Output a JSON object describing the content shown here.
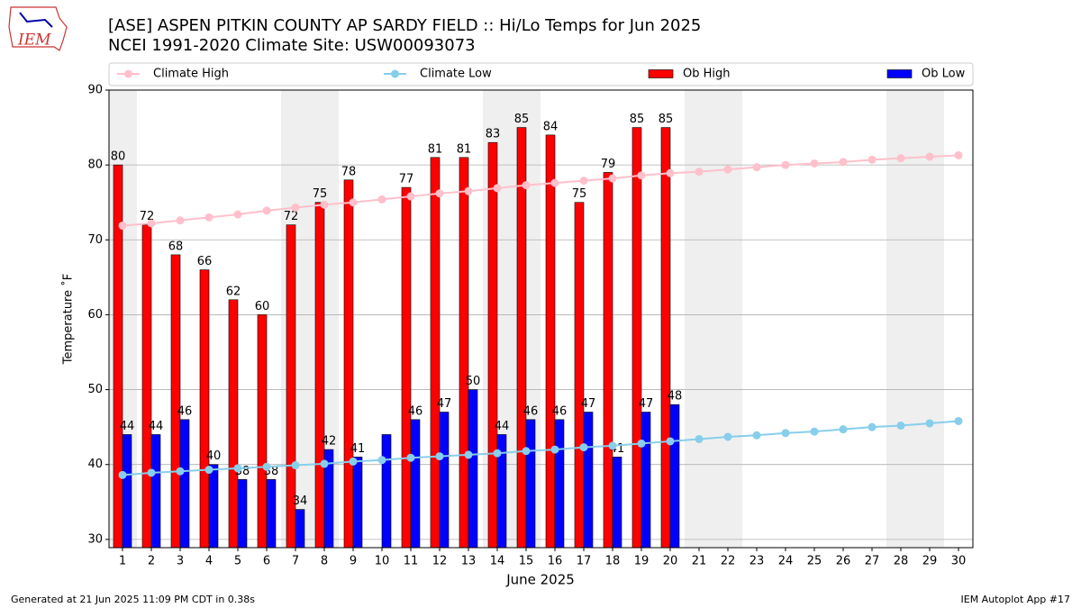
{
  "header": {
    "title": "[ASE] ASPEN PITKIN COUNTY AP SARDY FIELD :: Hi/Lo Temps for Jun 2025",
    "subtitle": "NCEI 1991-2020 Climate Site: USW00093073",
    "logo": "IEM"
  },
  "footer": {
    "left": "Generated at 21 Jun 2025 11:09 PM CDT in 0.38s",
    "right": "IEM Autoplot App #17"
  },
  "chart_data": {
    "type": "bar",
    "xlabel": "June 2025",
    "ylabel": "Temperature ˚F",
    "categories": [
      "1",
      "2",
      "3",
      "4",
      "5",
      "6",
      "7",
      "8",
      "9",
      "10",
      "11",
      "12",
      "13",
      "14",
      "15",
      "16",
      "17",
      "18",
      "19",
      "20",
      "21",
      "22",
      "23",
      "24",
      "25",
      "26",
      "27",
      "28",
      "29",
      "30"
    ],
    "highlight_categories": [
      0,
      6,
      7,
      13,
      14,
      20,
      21,
      27,
      28
    ],
    "highlight_color": "#efefef",
    "series": [
      {
        "name": "Climate High",
        "type": "line",
        "color": "#ffc0cb",
        "values": [
          71.9,
          72.2,
          72.6,
          73.0,
          73.4,
          73.9,
          74.3,
          74.7,
          75.0,
          75.4,
          75.8,
          76.2,
          76.5,
          76.9,
          77.3,
          77.6,
          77.9,
          78.2,
          78.6,
          78.9,
          79.1,
          79.4,
          79.7,
          80.0,
          80.2,
          80.4,
          80.7,
          80.9,
          81.1,
          81.3
        ]
      },
      {
        "name": "Climate Low",
        "type": "line",
        "color": "#87ceeb",
        "values": [
          38.6,
          38.9,
          39.1,
          39.3,
          39.5,
          39.7,
          39.9,
          40.1,
          40.4,
          40.6,
          40.9,
          41.1,
          41.3,
          41.5,
          41.8,
          42.0,
          42.3,
          42.5,
          42.8,
          43.1,
          43.4,
          43.7,
          43.9,
          44.2,
          44.4,
          44.7,
          45.0,
          45.2,
          45.5,
          45.8
        ]
      },
      {
        "name": "Ob High",
        "type": "bar",
        "color": "#ff0000",
        "values": [
          80,
          72,
          68,
          66,
          62,
          60,
          72,
          75,
          78,
          null,
          77,
          81,
          81,
          83,
          85,
          84,
          75,
          79,
          85,
          85,
          null,
          null,
          null,
          null,
          null,
          null,
          null,
          null,
          null,
          null
        ]
      },
      {
        "name": "Ob Low",
        "type": "bar",
        "color": "#0000ff",
        "values": [
          44,
          44,
          46,
          40,
          38,
          38,
          34,
          42,
          41,
          44,
          46,
          47,
          50,
          44,
          46,
          46,
          47,
          41,
          47,
          48,
          null,
          null,
          null,
          null,
          null,
          null,
          null,
          null,
          null,
          null
        ],
        "value_labels": [
          "44",
          "44",
          "46",
          "40",
          "38",
          "38",
          "34",
          "42",
          "41",
          null,
          "46",
          "47",
          "50",
          "44",
          "46",
          "46",
          "47",
          "41",
          "47",
          "48",
          null,
          null,
          null,
          null,
          null,
          null,
          null,
          null,
          null,
          null
        ]
      }
    ],
    "ylim": [
      28.9,
      90
    ],
    "yticks": [
      30,
      40,
      50,
      60,
      70,
      80,
      90
    ],
    "grid": true
  }
}
